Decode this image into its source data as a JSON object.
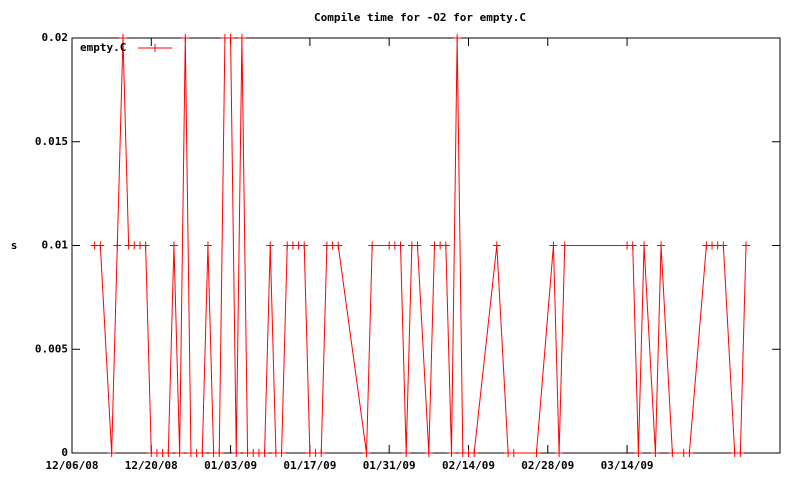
{
  "chart_data": {
    "type": "line",
    "title": "Compile time for -O2 for empty.C",
    "y_label": "s",
    "x": [
      "12/10/08",
      "12/11/08",
      "12/13/08",
      "12/14/08",
      "12/15/08",
      "12/16/08",
      "12/17/08",
      "12/18/08",
      "12/19/08",
      "12/20/08",
      "12/21/08",
      "12/22/08",
      "12/23/08",
      "12/24/08",
      "12/25/08",
      "12/26/08",
      "12/27/08",
      "12/28/08",
      "12/29/08",
      "12/30/08",
      "12/31/08",
      "01/01/09",
      "01/02/09",
      "01/03/09",
      "01/04/09",
      "01/05/09",
      "01/06/09",
      "01/07/09",
      "01/08/09",
      "01/09/09",
      "01/10/09",
      "01/11/09",
      "01/12/09",
      "01/13/09",
      "01/14/09",
      "01/15/09",
      "01/16/09",
      "01/17/09",
      "01/18/09",
      "01/19/09",
      "01/20/09",
      "01/21/09",
      "01/22/09",
      "01/27/09",
      "01/28/09",
      "01/31/09",
      "02/01/09",
      "02/02/09",
      "02/03/09",
      "02/04/09",
      "02/05/09",
      "02/07/09",
      "02/08/09",
      "02/09/09",
      "02/10/09",
      "02/11/09",
      "02/12/09",
      "02/13/09",
      "02/14/09",
      "02/15/09",
      "02/19/09",
      "02/21/09",
      "02/22/09",
      "02/26/09",
      "03/01/09",
      "03/02/09",
      "03/03/09",
      "03/14/09",
      "03/15/09",
      "03/16/09",
      "03/17/09",
      "03/19/09",
      "03/20/09",
      "03/22/09",
      "03/24/09",
      "03/25/09",
      "03/28/09",
      "03/29/09",
      "03/30/09",
      "03/31/09",
      "04/02/09",
      "04/03/09",
      "04/04/09"
    ],
    "series": [
      {
        "name": "empty.C",
        "color": "#ff0000",
        "values": [
          0.01,
          0.01,
          0,
          0.01,
          0.02,
          0.01,
          0.01,
          0.01,
          0.01,
          0,
          0,
          0,
          0,
          0.01,
          0,
          0.02,
          0,
          0,
          0,
          0.01,
          0,
          0,
          0.02,
          0.02,
          0,
          0.02,
          0,
          0,
          0,
          0,
          0.01,
          0,
          0,
          0.01,
          0.01,
          0.01,
          0.01,
          0,
          0,
          0,
          0.01,
          0.01,
          0.01,
          0,
          0.01,
          0.01,
          0.01,
          0.01,
          0,
          0.01,
          0.01,
          0,
          0.01,
          0.01,
          0.01,
          0,
          0.02,
          0,
          0,
          0,
          0.01,
          0,
          0,
          0,
          0.01,
          0,
          0.01,
          0.01,
          0.01,
          0,
          0.01,
          0,
          0.01,
          0,
          0,
          0,
          0.01,
          0.01,
          0.01,
          0.01,
          0,
          0,
          0.01
        ]
      }
    ],
    "xlim": [
      "12/06/08",
      "04/10/09"
    ],
    "xticks": [
      "12/06/08",
      "12/20/08",
      "01/03/09",
      "01/17/09",
      "01/31/09",
      "02/14/09",
      "02/28/09",
      "03/14/09"
    ],
    "ylim": [
      0,
      0.02
    ],
    "yticks": [
      0,
      0.005,
      0.01,
      0.015,
      0.02
    ],
    "legend": "top-left"
  }
}
